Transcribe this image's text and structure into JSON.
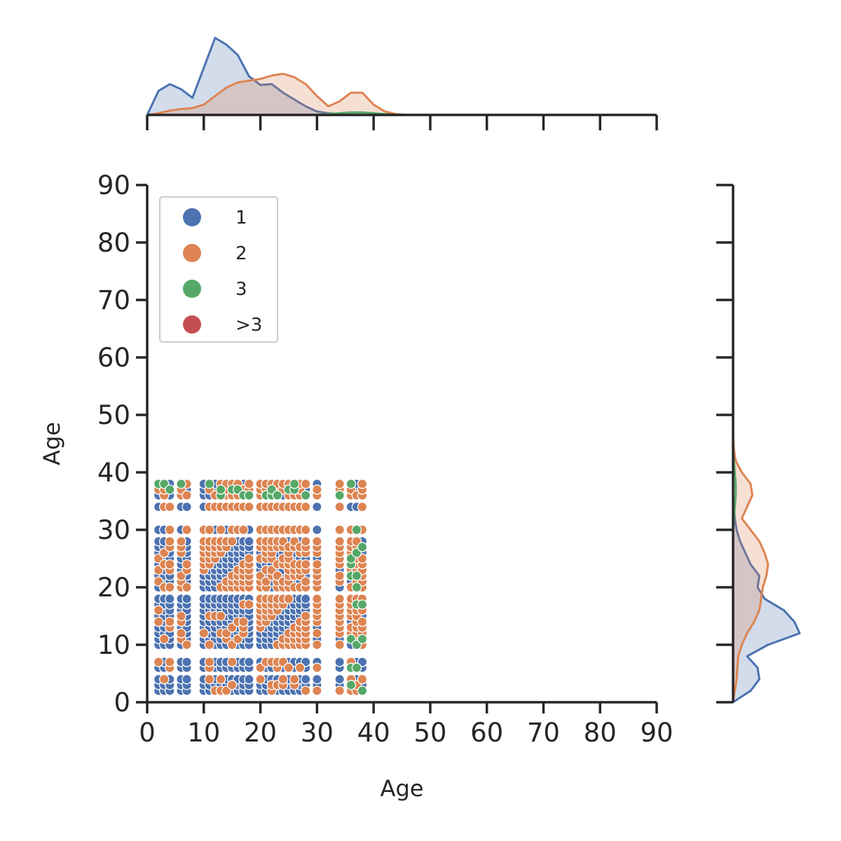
{
  "chart_data": {
    "type": "scatter",
    "title": "",
    "xlabel": "Age",
    "ylabel": "Age",
    "xlim": [
      0,
      90
    ],
    "ylim": [
      0,
      90
    ],
    "xticks": [
      0,
      10,
      20,
      30,
      40,
      50,
      60,
      70,
      80,
      90
    ],
    "yticks": [
      0,
      10,
      20,
      30,
      40,
      50,
      60,
      70,
      80,
      90
    ],
    "grid": false,
    "legend_position": "top-left",
    "series": [
      {
        "name": "1",
        "color": "#4c72b0"
      },
      {
        "name": "2",
        "color": "#dd8452"
      },
      {
        "name": "3",
        "color": "#55a868"
      },
      {
        "name": ">3",
        "color": "#c44e52"
      }
    ],
    "x_groups": [
      [
        2,
        3,
        4
      ],
      [
        6,
        7
      ],
      [
        10,
        11,
        12,
        13,
        14,
        15,
        16,
        17,
        18
      ],
      [
        20,
        21,
        22,
        23,
        24,
        25,
        26,
        27,
        28
      ],
      [
        30
      ],
      [
        34
      ],
      [
        36,
        37,
        38
      ]
    ],
    "y_groups": [
      [
        2,
        3,
        4
      ],
      [
        6,
        7
      ],
      [
        10,
        11,
        12,
        13,
        14,
        15,
        16,
        17,
        18
      ],
      [
        20,
        21,
        22,
        23,
        24,
        25,
        26,
        27,
        28
      ],
      [
        30
      ],
      [
        34
      ],
      [
        36,
        37,
        38
      ]
    ],
    "marginal_x_kde": {
      "x": [
        0,
        2,
        4,
        6,
        8,
        10,
        12,
        14,
        16,
        18,
        20,
        22,
        24,
        26,
        28,
        30,
        32,
        34,
        36,
        38,
        40,
        42,
        44,
        46
      ],
      "series": [
        {
          "name": "1",
          "density": [
            0.0,
            0.028,
            0.036,
            0.03,
            0.02,
            0.055,
            0.09,
            0.082,
            0.07,
            0.045,
            0.035,
            0.036,
            0.026,
            0.018,
            0.01,
            0.004,
            0.002,
            0.001,
            0.0,
            0.0,
            0.0,
            0.0,
            0.0,
            0.0
          ]
        },
        {
          "name": "2",
          "density": [
            0.0,
            0.002,
            0.005,
            0.007,
            0.008,
            0.012,
            0.022,
            0.032,
            0.038,
            0.04,
            0.042,
            0.046,
            0.048,
            0.044,
            0.036,
            0.022,
            0.01,
            0.016,
            0.026,
            0.026,
            0.012,
            0.004,
            0.001,
            0.0
          ]
        },
        {
          "name": "3",
          "density": [
            0.0,
            0.0,
            0.0,
            0.0,
            0.0,
            0.0,
            0.0,
            0.0,
            0.0,
            0.0,
            0.0,
            0.0,
            0.0,
            0.0,
            0.0,
            0.0,
            0.001,
            0.002,
            0.003,
            0.003,
            0.002,
            0.001,
            0.0,
            0.0
          ]
        }
      ]
    },
    "marginal_y_kde": {
      "y": [
        0,
        2,
        4,
        6,
        8,
        10,
        12,
        14,
        16,
        18,
        20,
        22,
        24,
        26,
        28,
        30,
        32,
        34,
        36,
        38,
        40,
        42,
        44,
        46
      ],
      "series": [
        {
          "name": "1",
          "density": [
            0.0,
            0.02,
            0.03,
            0.028,
            0.016,
            0.04,
            0.076,
            0.07,
            0.058,
            0.036,
            0.028,
            0.03,
            0.02,
            0.014,
            0.008,
            0.004,
            0.002,
            0.001,
            0.0,
            0.0,
            0.0,
            0.0,
            0.0,
            0.0
          ]
        },
        {
          "name": "2",
          "density": [
            0.0,
            0.002,
            0.004,
            0.005,
            0.006,
            0.01,
            0.016,
            0.024,
            0.03,
            0.032,
            0.034,
            0.038,
            0.04,
            0.036,
            0.03,
            0.02,
            0.01,
            0.016,
            0.022,
            0.02,
            0.01,
            0.003,
            0.001,
            0.0
          ]
        },
        {
          "name": "3",
          "density": [
            0.0,
            0.0,
            0.0,
            0.0,
            0.0,
            0.0,
            0.0,
            0.0,
            0.0,
            0.0,
            0.0,
            0.0,
            0.0,
            0.0,
            0.0,
            0.0,
            0.001,
            0.002,
            0.003,
            0.003,
            0.002,
            0.001,
            0.0,
            0.0
          ]
        }
      ]
    }
  }
}
